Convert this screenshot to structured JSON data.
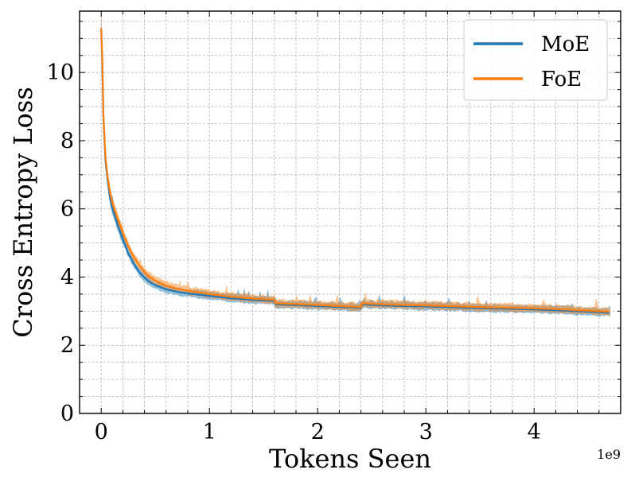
{
  "chart_data": {
    "type": "line",
    "xlabel": "Tokens Seen",
    "ylabel": "Cross Entropy Loss",
    "x_offset_label": "1e9",
    "xlim": [
      -0.2,
      4.8
    ],
    "ylim": [
      0,
      11.8
    ],
    "x_ticks": [
      0,
      1,
      2,
      3,
      4
    ],
    "x_tick_labels": [
      "0",
      "1",
      "2",
      "3",
      "4"
    ],
    "y_ticks": [
      0,
      2,
      4,
      6,
      8,
      10
    ],
    "y_tick_labels": [
      "0",
      "2",
      "4",
      "6",
      "8",
      "10"
    ],
    "grid": true,
    "legend_position": "top-right",
    "series": [
      {
        "name": "MoE",
        "color": "#1f77b4",
        "x": [
          0,
          0.01,
          0.02,
          0.04,
          0.06,
          0.08,
          0.1,
          0.15,
          0.2,
          0.25,
          0.3,
          0.35,
          0.4,
          0.45,
          0.5,
          0.6,
          0.7,
          0.8,
          1.0,
          1.2,
          1.4,
          1.6,
          1.61,
          1.8,
          2.0,
          2.2,
          2.4,
          2.41,
          2.6,
          2.8,
          3.0,
          3.2,
          3.4,
          3.6,
          3.8,
          4.0,
          4.2,
          4.4,
          4.6,
          4.7
        ],
        "y": [
          11.3,
          10.3,
          8.7,
          7.4,
          6.8,
          6.35,
          6.05,
          5.55,
          5.1,
          4.7,
          4.4,
          4.15,
          3.98,
          3.85,
          3.76,
          3.64,
          3.57,
          3.52,
          3.45,
          3.38,
          3.33,
          3.3,
          3.2,
          3.18,
          3.15,
          3.12,
          3.1,
          3.2,
          3.17,
          3.15,
          3.14,
          3.12,
          3.1,
          3.08,
          3.07,
          3.05,
          3.03,
          3.0,
          2.97,
          2.95
        ]
      },
      {
        "name": "FoE",
        "color": "#ff7f0e",
        "x": [
          0,
          0.01,
          0.02,
          0.04,
          0.06,
          0.08,
          0.1,
          0.15,
          0.2,
          0.25,
          0.3,
          0.35,
          0.4,
          0.45,
          0.5,
          0.6,
          0.7,
          0.8,
          1.0,
          1.2,
          1.4,
          1.6,
          1.61,
          1.8,
          2.0,
          2.2,
          2.4,
          2.41,
          2.6,
          2.8,
          3.0,
          3.2,
          3.4,
          3.6,
          3.8,
          4.0,
          4.2,
          4.4,
          4.6,
          4.7
        ],
        "y": [
          11.3,
          10.35,
          8.8,
          7.5,
          6.9,
          6.5,
          6.2,
          5.72,
          5.3,
          4.9,
          4.6,
          4.35,
          4.15,
          4.0,
          3.9,
          3.75,
          3.66,
          3.6,
          3.5,
          3.42,
          3.37,
          3.33,
          3.23,
          3.21,
          3.18,
          3.15,
          3.12,
          3.23,
          3.2,
          3.18,
          3.17,
          3.15,
          3.13,
          3.11,
          3.1,
          3.08,
          3.06,
          3.03,
          3.0,
          2.98
        ]
      }
    ]
  }
}
